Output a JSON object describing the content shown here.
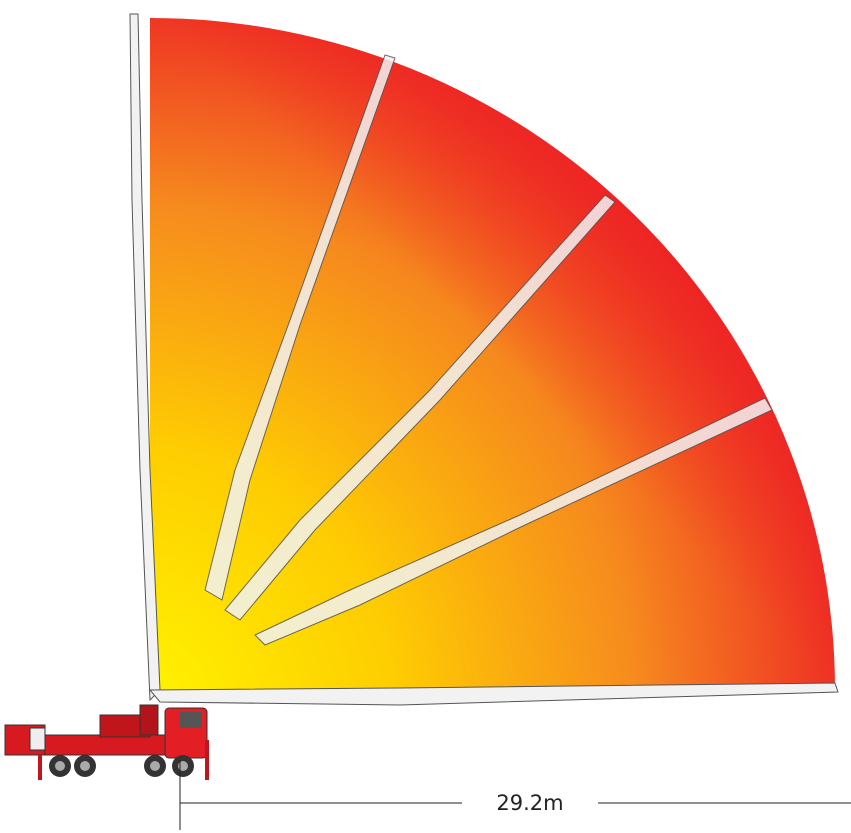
{
  "dimension": {
    "label": "29.2m"
  }
}
